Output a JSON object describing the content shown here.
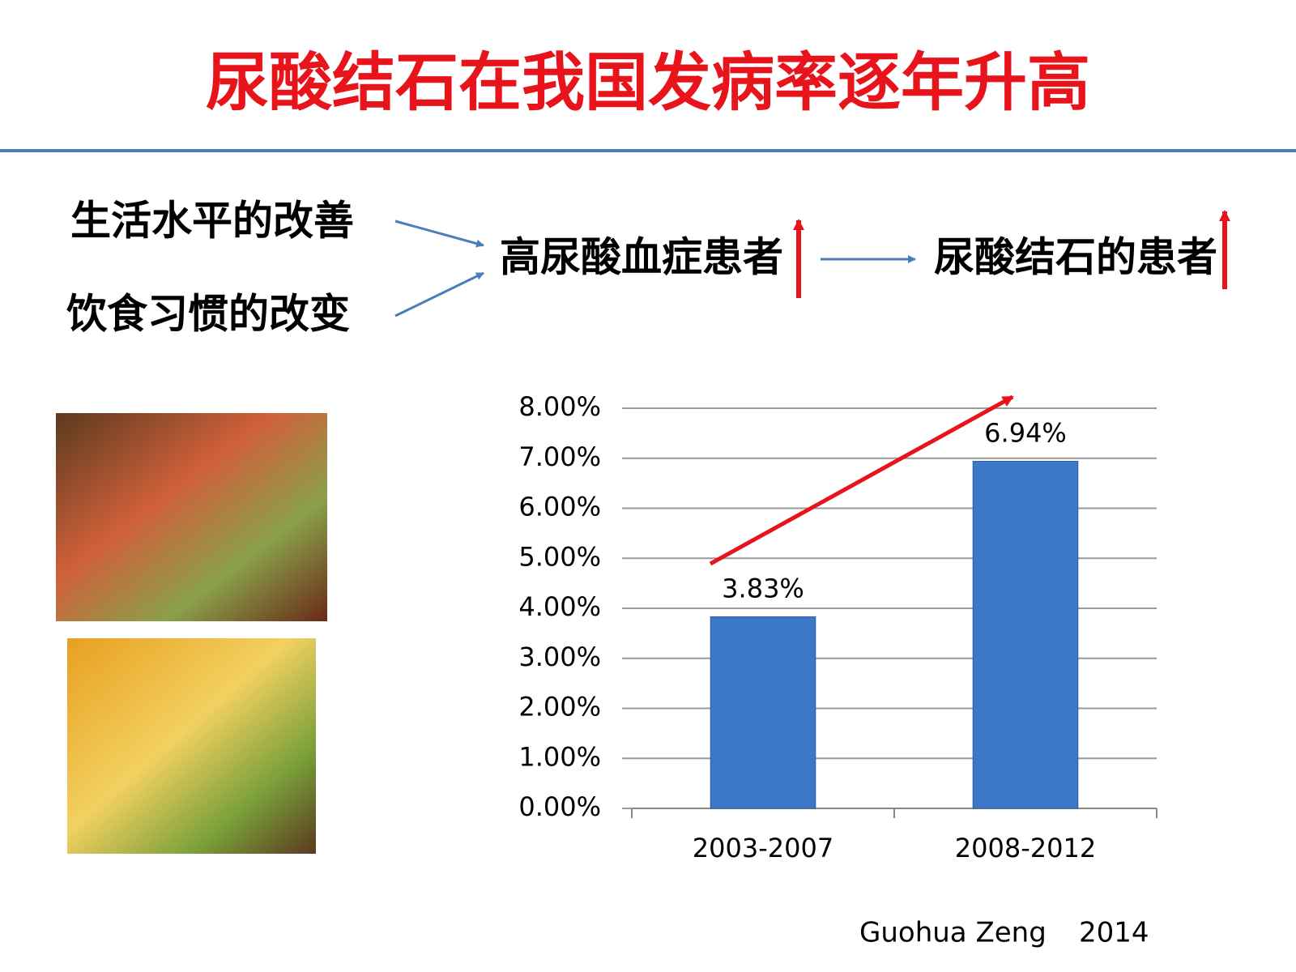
{
  "title": "尿酸结石在我国发病率逐年升高",
  "flow": {
    "causes": [
      "生活水平的改善",
      "饮食习惯的改变"
    ],
    "middle": "高尿酸血症患者",
    "result": "尿酸结石的患者"
  },
  "chart_data": {
    "type": "bar",
    "categories": [
      "2003-2007",
      "2008-2012"
    ],
    "values": [
      3.83,
      6.94
    ],
    "value_labels": [
      "3.83%",
      "6.94%"
    ],
    "color": "#3b78c8",
    "ylim": [
      0,
      8
    ],
    "yticks": [
      {
        "value": 0,
        "label": "0.00%"
      },
      {
        "value": 1,
        "label": "1.00%"
      },
      {
        "value": 2,
        "label": "2.00%"
      },
      {
        "value": 3,
        "label": "3.00%"
      },
      {
        "value": 4,
        "label": "4.00%"
      },
      {
        "value": 5,
        "label": "5.00%"
      },
      {
        "value": 6,
        "label": "6.00%"
      },
      {
        "value": 7,
        "label": "7.00%"
      },
      {
        "value": 8,
        "label": "8.00%"
      }
    ],
    "grid": true
  },
  "footer": {
    "author": "Guohua Zeng",
    "year": "2014"
  }
}
